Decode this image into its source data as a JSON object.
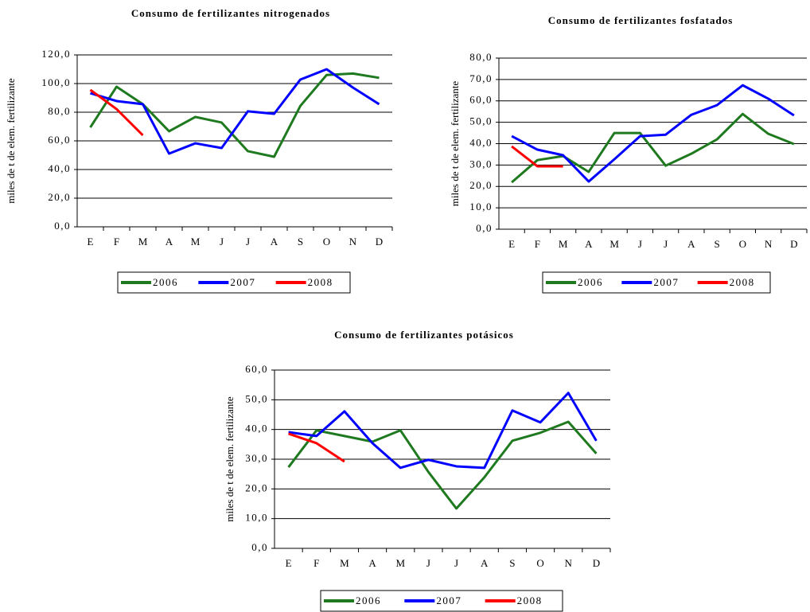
{
  "chart_data": [
    {
      "type": "line",
      "title": "Consumo de fertilizantes nitrogenados",
      "y_label": "miles de t de elem. fertilizante",
      "categories": [
        "E",
        "F",
        "M",
        "A",
        "M",
        "J",
        "J",
        "A",
        "S",
        "O",
        "N",
        "D"
      ],
      "ylim": [
        0,
        120
      ],
      "yticks": [
        {
          "value": 0,
          "label": "0,0"
        },
        {
          "value": 20,
          "label": "20,0"
        },
        {
          "value": 40,
          "label": "40,0"
        },
        {
          "value": 60,
          "label": "60,0"
        },
        {
          "value": 80,
          "label": "80,0"
        },
        {
          "value": 100,
          "label": "100,0"
        },
        {
          "value": 120,
          "label": "120,0"
        }
      ],
      "grid": true,
      "series": [
        {
          "name": "2006",
          "color": "#1f7a1f",
          "values": [
            69.4,
            97.8,
            85.6,
            66.7,
            76.7,
            72.8,
            52.8,
            48.9,
            84.4,
            106,
            107,
            104
          ]
        },
        {
          "name": "2007",
          "color": "#0000ff",
          "values": [
            93.3,
            87.8,
            85.6,
            51.1,
            58.3,
            55,
            80.6,
            78.9,
            102.8,
            110,
            97.2,
            85.6
          ]
        },
        {
          "name": "2008",
          "color": "#ff0000",
          "values": [
            95.6,
            82.2,
            63.9,
            null,
            null,
            null,
            null,
            null,
            null,
            null,
            null,
            null
          ]
        }
      ]
    },
    {
      "type": "line",
      "title": "Consumo de fertilizantes fosfatados",
      "y_label": "miles de t de elem. fertilizante",
      "categories": [
        "E",
        "F",
        "M",
        "A",
        "M",
        "J",
        "J",
        "A",
        "S",
        "O",
        "N",
        "D"
      ],
      "ylim": [
        0,
        80
      ],
      "yticks": [
        {
          "value": 0,
          "label": "0,0"
        },
        {
          "value": 10,
          "label": "10,0"
        },
        {
          "value": 20,
          "label": "20,0"
        },
        {
          "value": 30,
          "label": "30,0"
        },
        {
          "value": 40,
          "label": "40,0"
        },
        {
          "value": 50,
          "label": "50,0"
        },
        {
          "value": 60,
          "label": "60,0"
        },
        {
          "value": 70,
          "label": "70,0"
        },
        {
          "value": 80,
          "label": "80,0"
        }
      ],
      "grid": true,
      "series": [
        {
          "name": "2006",
          "color": "#1f7a1f",
          "values": [
            21.9,
            32.3,
            34.2,
            26.8,
            45,
            45,
            29.7,
            35.3,
            42,
            53.9,
            44.6,
            39.8
          ]
        },
        {
          "name": "2007",
          "color": "#0000ff",
          "values": [
            43.5,
            37.2,
            34.6,
            22.3,
            32.7,
            43.5,
            44.2,
            53.5,
            58,
            67.3,
            61,
            53.2
          ]
        },
        {
          "name": "2008",
          "color": "#ff0000",
          "values": [
            38.7,
            29.4,
            29.4,
            null,
            null,
            null,
            null,
            null,
            null,
            null,
            null,
            null
          ]
        }
      ]
    },
    {
      "type": "line",
      "title": "Consumo de fertilizantes potásicos",
      "y_label": "miles de t de elem. fertilizante",
      "categories": [
        "E",
        "F",
        "M",
        "A",
        "M",
        "J",
        "J",
        "A",
        "S",
        "O",
        "N",
        "D"
      ],
      "ylim": [
        0,
        60
      ],
      "yticks": [
        {
          "value": 0,
          "label": "0,0"
        },
        {
          "value": 10,
          "label": "10,0"
        },
        {
          "value": 20,
          "label": "20,0"
        },
        {
          "value": 30,
          "label": "30,0"
        },
        {
          "value": 40,
          "label": "40,0"
        },
        {
          "value": 50,
          "label": "50,0"
        },
        {
          "value": 60,
          "label": "60,0"
        }
      ],
      "grid": true,
      "series": [
        {
          "name": "2006",
          "color": "#1f7a1f",
          "values": [
            27.3,
            39.7,
            37.8,
            35.9,
            39.7,
            25.7,
            13.4,
            23.9,
            36.2,
            38.9,
            42.6,
            31.9
          ]
        },
        {
          "name": "2007",
          "color": "#0000ff",
          "values": [
            39.1,
            37.8,
            46.1,
            35.4,
            27.1,
            29.8,
            27.6,
            27.1,
            46.4,
            42.4,
            52.3,
            36.2
          ]
        },
        {
          "name": "2008",
          "color": "#ff0000",
          "values": [
            38.6,
            35.4,
            29.2,
            null,
            null,
            null,
            null,
            null,
            null,
            null,
            null,
            null
          ]
        }
      ]
    }
  ]
}
